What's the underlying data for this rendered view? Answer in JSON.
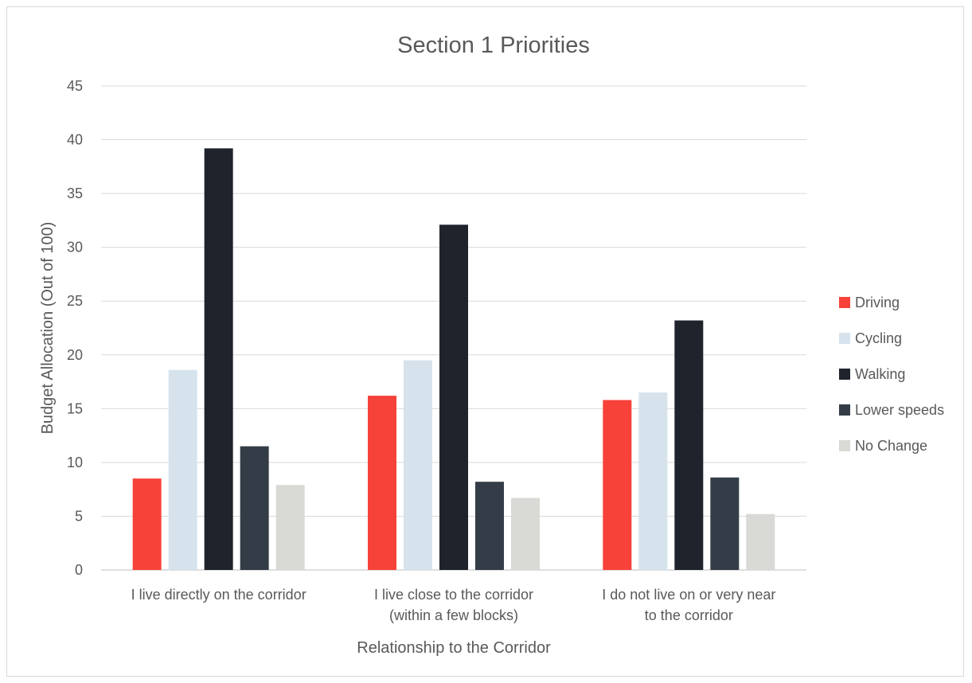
{
  "chart_data": {
    "type": "bar",
    "title": "Section 1 Priorities",
    "xlabel": "Relationship to the Corridor",
    "ylabel": "Budget Allocation (Out of 100)",
    "ylim": [
      0,
      45
    ],
    "yticks": [
      0,
      5,
      10,
      15,
      20,
      25,
      30,
      35,
      40,
      45
    ],
    "grid": true,
    "legend_position": "right",
    "categories": [
      [
        "I live directly on the corridor"
      ],
      [
        "I live close to the corridor",
        "(within a few blocks)"
      ],
      [
        "I do not live on or very near",
        "to the corridor"
      ]
    ],
    "series": [
      {
        "name": "Driving",
        "color": "#f7423a",
        "values": [
          8.5,
          16.2,
          15.8
        ]
      },
      {
        "name": "Cycling",
        "color": "#d6e3ed",
        "values": [
          18.6,
          19.5,
          16.5
        ]
      },
      {
        "name": "Walking",
        "color": "#1f242c",
        "values": [
          39.2,
          32.1,
          23.2
        ]
      },
      {
        "name": "Lower speeds",
        "color": "#343d47",
        "values": [
          11.5,
          8.2,
          8.6
        ]
      },
      {
        "name": "No Change",
        "color": "#d9d9d6",
        "values": [
          7.9,
          6.7,
          5.2
        ]
      }
    ]
  }
}
